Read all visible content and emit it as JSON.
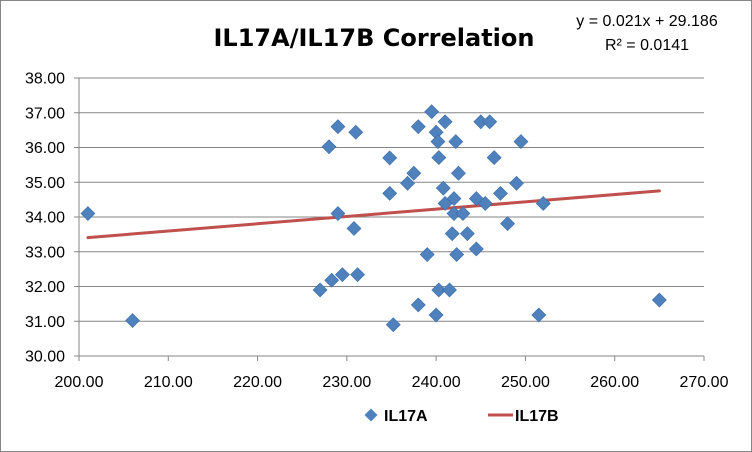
{
  "chart_data": {
    "type": "scatter",
    "title": "IL17A/IL17B Correlation",
    "xlabel": "",
    "ylabel": "",
    "xlim": [
      200,
      270
    ],
    "ylim": [
      30,
      38
    ],
    "x_ticks": [
      "200.00",
      "210.00",
      "220.00",
      "230.00",
      "240.00",
      "250.00",
      "260.00",
      "270.00"
    ],
    "y_ticks": [
      "30.00",
      "31.00",
      "32.00",
      "33.00",
      "34.00",
      "35.00",
      "36.00",
      "37.00",
      "38.00"
    ],
    "grid": "horizontal",
    "legend_position": "bottom",
    "series": [
      {
        "name": "IL17A",
        "kind": "scatter",
        "marker": "diamond",
        "color": "#4F81BD",
        "points": [
          [
            201.0,
            34.1
          ],
          [
            206.0,
            31.02
          ],
          [
            227.0,
            31.9
          ],
          [
            228.0,
            36.02
          ],
          [
            228.3,
            32.18
          ],
          [
            229.0,
            36.6
          ],
          [
            229.0,
            34.1
          ],
          [
            229.5,
            32.34
          ],
          [
            230.8,
            33.67
          ],
          [
            231.0,
            36.44
          ],
          [
            231.2,
            32.34
          ],
          [
            234.8,
            35.7
          ],
          [
            234.8,
            34.68
          ],
          [
            235.2,
            30.9
          ],
          [
            236.8,
            34.97
          ],
          [
            237.5,
            35.26
          ],
          [
            238.0,
            36.6
          ],
          [
            238.0,
            31.47
          ],
          [
            239.0,
            32.92
          ],
          [
            239.5,
            37.03
          ],
          [
            240.0,
            36.44
          ],
          [
            240.0,
            31.18
          ],
          [
            240.2,
            36.17
          ],
          [
            240.3,
            35.71
          ],
          [
            240.3,
            31.9
          ],
          [
            240.8,
            34.83
          ],
          [
            241.0,
            34.39
          ],
          [
            241.0,
            36.74
          ],
          [
            241.5,
            31.9
          ],
          [
            241.8,
            33.52
          ],
          [
            242.0,
            34.53
          ],
          [
            242.0,
            34.1
          ],
          [
            242.2,
            36.17
          ],
          [
            242.3,
            32.92
          ],
          [
            242.5,
            35.26
          ],
          [
            243.0,
            34.1
          ],
          [
            243.5,
            33.52
          ],
          [
            244.5,
            34.53
          ],
          [
            244.5,
            33.08
          ],
          [
            245.0,
            36.74
          ],
          [
            245.5,
            34.39
          ],
          [
            246.0,
            36.74
          ],
          [
            246.5,
            35.71
          ],
          [
            247.2,
            34.68
          ],
          [
            248.0,
            33.81
          ],
          [
            249.0,
            34.97
          ],
          [
            249.5,
            36.17
          ],
          [
            251.5,
            31.18
          ],
          [
            252.0,
            34.39
          ],
          [
            265.0,
            31.61
          ]
        ]
      },
      {
        "name": "IL17B",
        "kind": "line",
        "color": "#C0504D",
        "slope": 0.021,
        "intercept": 29.186,
        "x_range": [
          201,
          265
        ]
      }
    ],
    "annotations": {
      "equation": "y = 0.021x + 29.186",
      "r_squared": "R² = 0.0141"
    }
  }
}
